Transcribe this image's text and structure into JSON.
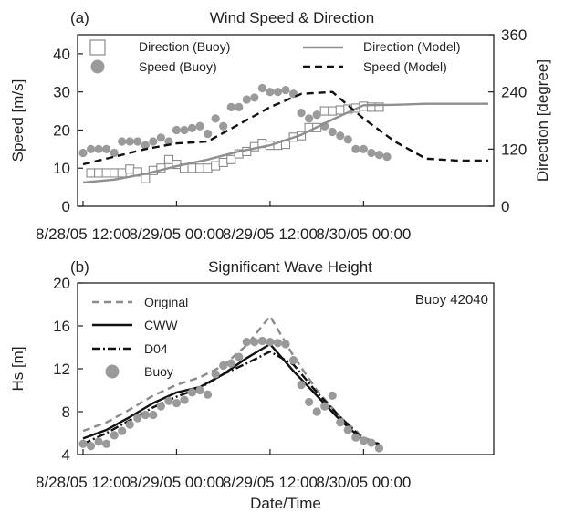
{
  "figure": {
    "xlabel": "Date/Time"
  },
  "chart_data": [
    {
      "type": "line",
      "panel_label": "(a)",
      "title": "Wind Speed & Direction",
      "ylabel": "Speed [m/s]",
      "y2label": "Direction [degree]",
      "ylim": [
        0,
        45
      ],
      "yticks": [
        0,
        10,
        20,
        30,
        40
      ],
      "y2lim": [
        0,
        360
      ],
      "y2ticks": [
        0,
        120,
        240,
        360
      ],
      "xlim": [
        0,
        52
      ],
      "xticks": [
        {
          "x": 0,
          "label": "8/28/05 12:00"
        },
        {
          "x": 12,
          "label": "8/29/05 00:00"
        },
        {
          "x": 24,
          "label": "8/29/05 12:00"
        },
        {
          "x": 36,
          "label": "8/30/05 00:00"
        }
      ],
      "legend_placement": "top",
      "series": [
        {
          "name": "Direction (Buoy)",
          "kind": "marker-square",
          "axis": "right",
          "color": "#8a8a8a",
          "x": [
            1,
            2,
            3,
            4,
            5,
            6,
            7,
            8,
            9,
            10,
            11,
            12,
            13,
            14,
            15,
            16,
            17,
            18,
            19,
            20,
            21,
            22,
            23,
            24,
            25,
            26,
            27,
            28,
            29,
            30,
            31,
            32,
            33,
            34,
            35,
            36,
            37,
            38
          ],
          "values": [
            70,
            70,
            70,
            70,
            70,
            78,
            72,
            58,
            75,
            80,
            98,
            88,
            80,
            80,
            80,
            80,
            85,
            92,
            98,
            110,
            115,
            125,
            132,
            128,
            128,
            130,
            145,
            148,
            165,
            165,
            200,
            200,
            202,
            204,
            206,
            210,
            208,
            208
          ]
        },
        {
          "name": "Speed (Buoy)",
          "kind": "marker-circle",
          "axis": "left",
          "color": "#9a9a9a",
          "x": [
            0,
            1,
            2,
            3,
            4,
            5,
            6,
            7,
            8,
            9,
            10,
            11,
            12,
            13,
            14,
            15,
            16,
            17,
            18,
            19,
            20,
            21,
            22,
            23,
            24,
            25,
            26,
            27,
            28,
            29,
            30,
            31,
            32,
            33,
            34,
            35,
            36,
            37,
            38,
            39
          ],
          "values": [
            14,
            15,
            15,
            15,
            14,
            17,
            17,
            17,
            16,
            17,
            18,
            17,
            20,
            20,
            20.5,
            21,
            19,
            23,
            21,
            26,
            26,
            28,
            28.5,
            31,
            30,
            30,
            30.5,
            29.5,
            24.5,
            23,
            24,
            21,
            19.5,
            18.5,
            17.5,
            15,
            15,
            14,
            13.5,
            13
          ]
        },
        {
          "name": "Direction (Model)",
          "kind": "line-solid",
          "axis": "right",
          "color": "#8f8f8f",
          "x": [
            0,
            4,
            8,
            12,
            16,
            20,
            24,
            28,
            32,
            36,
            40,
            44,
            48,
            52
          ],
          "values": [
            50,
            56,
            68,
            84,
            98,
            115,
            128,
            150,
            182,
            212,
            213,
            215,
            215,
            215
          ]
        },
        {
          "name": "Speed (Model)",
          "kind": "line-dash",
          "axis": "left",
          "color": "#111111",
          "x": [
            0,
            4,
            8,
            12,
            16,
            20,
            24,
            28,
            32,
            36,
            40,
            44,
            48,
            52
          ],
          "values": [
            11,
            13,
            15,
            16.5,
            17,
            21.5,
            26,
            29.5,
            30,
            23,
            17,
            12.5,
            12,
            12
          ]
        }
      ]
    },
    {
      "type": "line",
      "panel_label": "(b)",
      "title": "Significant Wave Height",
      "annotation": "Buoy 42040",
      "ylabel": "Hs  [m]",
      "ylim": [
        4,
        20
      ],
      "yticks": [
        4,
        8,
        12,
        16,
        20
      ],
      "xlim": [
        0,
        52
      ],
      "xticks": [
        {
          "x": 0,
          "label": "8/28/05 12:00"
        },
        {
          "x": 12,
          "label": "8/29/05 00:00"
        },
        {
          "x": 24,
          "label": "8/29/05 12:00"
        },
        {
          "x": 36,
          "label": "8/30/05 00:00"
        }
      ],
      "legend_placement": "top-left",
      "series": [
        {
          "name": "Original",
          "kind": "line-dash",
          "color": "#8a8a8a",
          "x": [
            0,
            3,
            6,
            9,
            12,
            15,
            18,
            21,
            24,
            27,
            30,
            33,
            36,
            38
          ],
          "values": [
            6.2,
            7,
            8.2,
            9.5,
            10.5,
            11.2,
            12.3,
            14.2,
            16.9,
            13.2,
            10,
            7.5,
            5.6,
            5
          ]
        },
        {
          "name": "CWW",
          "kind": "line-solid",
          "color": "#111111",
          "x": [
            0,
            3,
            6,
            9,
            12,
            15,
            18,
            21,
            24,
            27,
            30,
            33,
            36,
            38
          ],
          "values": [
            5.5,
            6.3,
            7.5,
            8.8,
            9.8,
            10.3,
            11.5,
            13,
            14.3,
            11.8,
            9.5,
            7.2,
            5.3,
            5
          ]
        },
        {
          "name": "D04",
          "kind": "line-dashdot",
          "color": "#111111",
          "x": [
            0,
            3,
            6,
            9,
            12,
            15,
            18,
            21,
            24,
            27,
            30,
            33,
            36,
            38
          ],
          "values": [
            5,
            6,
            7.2,
            8.4,
            9.4,
            10.2,
            11.5,
            12.5,
            13.6,
            12.4,
            9.8,
            7.5,
            5.4,
            4.8
          ]
        },
        {
          "name": "Buoy",
          "kind": "marker-circle",
          "color": "#9a9a9a",
          "x": [
            0,
            1,
            2,
            3,
            4,
            5,
            6,
            7,
            8,
            9,
            10,
            11,
            12,
            13,
            14,
            15,
            16,
            17,
            18,
            19,
            20,
            21,
            22,
            23,
            24,
            25,
            26,
            27,
            28,
            29,
            30,
            31,
            32,
            33,
            34,
            35,
            36,
            37,
            38
          ],
          "values": [
            5,
            4.8,
            5.2,
            5,
            5.8,
            6.2,
            6.8,
            7.4,
            7.7,
            7.7,
            8.5,
            9,
            8.8,
            9.1,
            9.8,
            10,
            9.6,
            11.5,
            12.3,
            12.5,
            13.1,
            14.5,
            14.5,
            14.6,
            14.5,
            14.4,
            14.3,
            12.8,
            10.5,
            8.9,
            8,
            8.5,
            9.5,
            7,
            6.3,
            5.6,
            5.3,
            5.1,
            4.6
          ]
        }
      ]
    }
  ]
}
